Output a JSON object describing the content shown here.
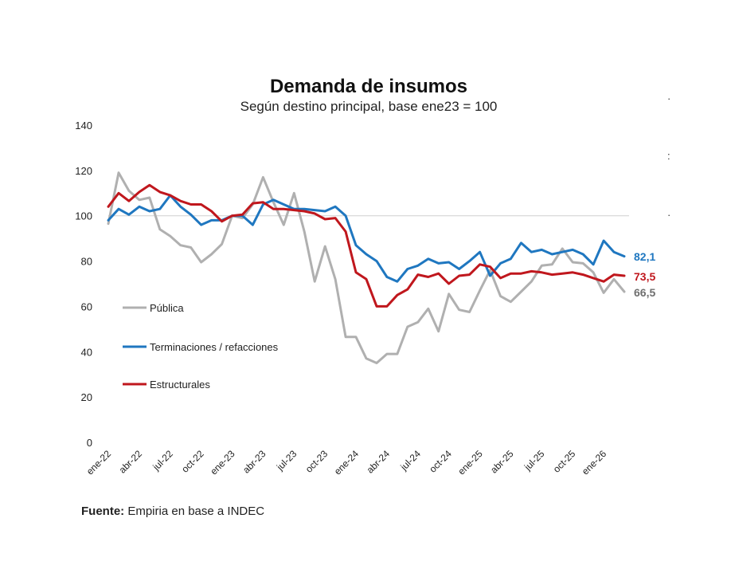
{
  "chart_data": {
    "type": "line",
    "title": "Demanda de insumos",
    "subtitle": "Según destino principal, base ene23 = 100",
    "xlabel": "",
    "ylabel": "",
    "ylim": [
      0,
      140
    ],
    "yticks": [
      0,
      20,
      40,
      60,
      80,
      100,
      120,
      140
    ],
    "reference_line": 100,
    "legend_position": "left-center",
    "x_tick_labels": [
      "ene-22",
      "abr-22",
      "jul-22",
      "oct-22",
      "ene-23",
      "abr-23",
      "jul-23",
      "oct-23",
      "ene-24",
      "abr-24",
      "jul-24",
      "oct-24",
      "ene-25",
      "abr-25",
      "jul-25",
      "oct-25",
      "ene-26"
    ],
    "x": [
      "ene-22",
      "feb-22",
      "mar-22",
      "abr-22",
      "may-22",
      "jun-22",
      "jul-22",
      "ago-22",
      "sep-22",
      "oct-22",
      "nov-22",
      "dic-22",
      "ene-23",
      "feb-23",
      "mar-23",
      "abr-23",
      "may-23",
      "jun-23",
      "jul-23",
      "ago-23",
      "sep-23",
      "oct-23",
      "nov-23",
      "dic-23",
      "ene-24",
      "feb-24",
      "mar-24",
      "abr-24",
      "may-24",
      "jun-24",
      "jul-24",
      "ago-24",
      "sep-24",
      "oct-24",
      "nov-24",
      "dic-24",
      "ene-25",
      "feb-25",
      "mar-25",
      "abr-25",
      "may-25",
      "jun-25",
      "jul-25",
      "ago-25",
      "sep-25",
      "oct-25",
      "nov-25",
      "dic-25",
      "ene-26",
      "feb-26",
      "mar-26"
    ],
    "series": [
      {
        "name": "Pública",
        "color": "#b0b0b0",
        "end_label": "66,5",
        "values": [
          96.5,
          119,
          111,
          107,
          108,
          94,
          91,
          87,
          86,
          79.5,
          83,
          87.5,
          100,
          99,
          105,
          117,
          106,
          96,
          110,
          93,
          71,
          86.5,
          72,
          46.5,
          46.5,
          37,
          35,
          39,
          39,
          51,
          53,
          59,
          49,
          65.5,
          58.5,
          57.5,
          67,
          76,
          64.5,
          62,
          66.5,
          71,
          78,
          78.5,
          85.5,
          79.5,
          79,
          75,
          66,
          72,
          66.5
        ]
      },
      {
        "name": "Terminaciones / refacciones",
        "color": "#1f77c0",
        "end_label": "82,1",
        "values": [
          98,
          103,
          100.5,
          104,
          102,
          103,
          109,
          104,
          100.5,
          96,
          98,
          98,
          100,
          100,
          96,
          105,
          107,
          105,
          103,
          103,
          102.5,
          102,
          104,
          100,
          87,
          83,
          80,
          73,
          71,
          76.5,
          78,
          81,
          79,
          79.5,
          76.5,
          80,
          84,
          73.5,
          79,
          81,
          88,
          84,
          85,
          83,
          84,
          85,
          83,
          78.5,
          89,
          84,
          82.1
        ]
      },
      {
        "name": "Estructurales",
        "color": "#c0171d",
        "end_label": "73,5",
        "values": [
          104,
          110,
          106.5,
          110.5,
          113.5,
          110.5,
          109,
          106.5,
          105,
          105,
          102,
          97.5,
          100,
          100.5,
          105.5,
          106,
          103,
          103,
          102.5,
          102,
          101,
          98.5,
          99,
          93,
          75,
          72,
          60,
          60,
          65,
          67.5,
          74,
          73,
          74.5,
          70,
          73.5,
          74,
          78.5,
          77.5,
          72.5,
          74.5,
          74.5,
          75.5,
          75,
          74,
          74.5,
          75,
          74,
          72.5,
          71,
          74,
          73.5
        ]
      }
    ]
  },
  "source": {
    "label": "Fuente:",
    "text": "Empiria en base a INDEC"
  },
  "edge_marks": [
    "·",
    ":",
    "·"
  ]
}
